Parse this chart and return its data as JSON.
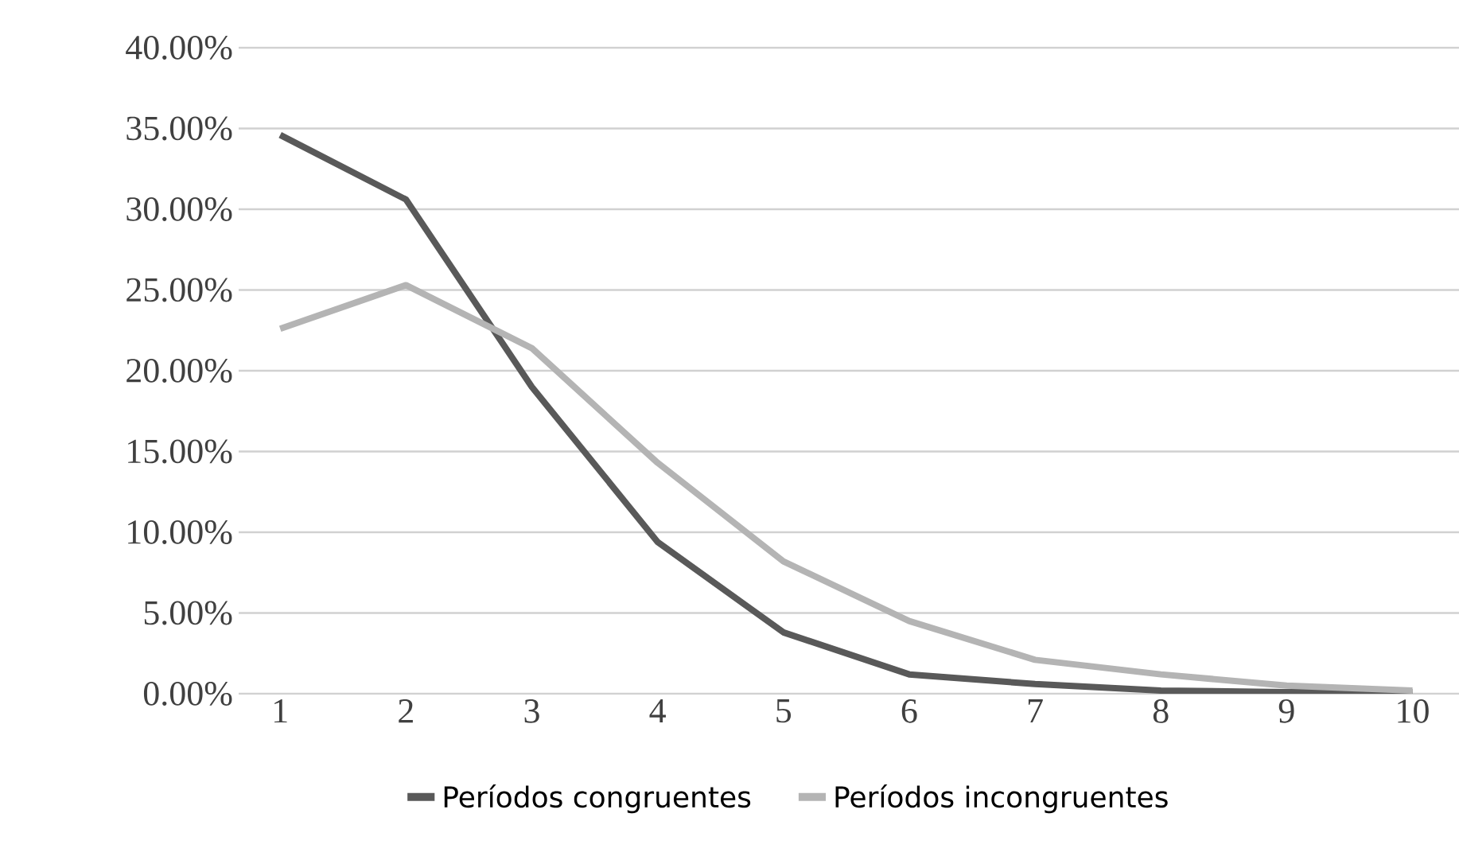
{
  "chart_data": {
    "type": "line",
    "categories": [
      "1",
      "2",
      "3",
      "4",
      "5",
      "6",
      "7",
      "8",
      "9",
      "10"
    ],
    "series": [
      {
        "name": "Períodos congruentes",
        "color": "#595959",
        "values": [
          34.6,
          30.6,
          19.0,
          9.4,
          3.8,
          1.2,
          0.6,
          0.2,
          0.1,
          0.1
        ]
      },
      {
        "name": "Períodos incongruentes",
        "color": "#b4b4b4",
        "values": [
          22.6,
          25.3,
          21.4,
          14.3,
          8.2,
          4.5,
          2.1,
          1.2,
          0.5,
          0.2
        ]
      }
    ],
    "ylim": [
      0,
      40
    ],
    "yticks": [
      {
        "value": 0,
        "label": "0.00%"
      },
      {
        "value": 5,
        "label": "5.00%"
      },
      {
        "value": 10,
        "label": "10.00%"
      },
      {
        "value": 15,
        "label": "15.00%"
      },
      {
        "value": 20,
        "label": "20.00%"
      },
      {
        "value": 25,
        "label": "25.00%"
      },
      {
        "value": 30,
        "label": "30.00%"
      },
      {
        "value": 35,
        "label": "35.00%"
      },
      {
        "value": 40,
        "label": "40.00%"
      }
    ],
    "grid": "y",
    "legend": "bottom",
    "marker": "none",
    "line_style": "solid"
  }
}
